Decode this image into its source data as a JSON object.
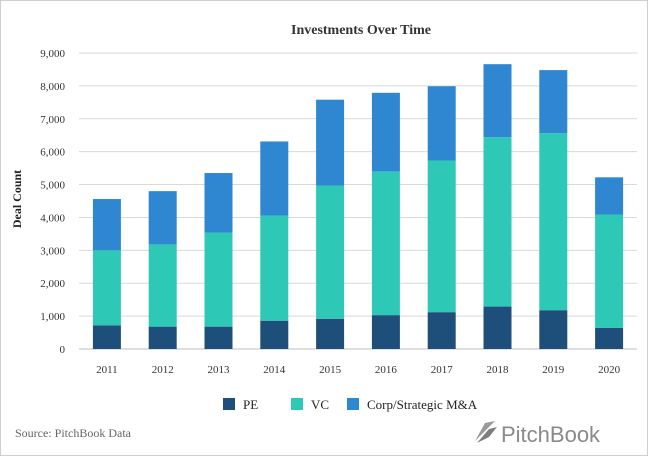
{
  "chart_data": {
    "type": "bar",
    "stacked": true,
    "title": "Investments Over Time",
    "xlabel": "",
    "ylabel": "Deal Count",
    "ylim": [
      0,
      9000
    ],
    "yticks": [
      0,
      1000,
      2000,
      3000,
      4000,
      5000,
      6000,
      7000,
      8000,
      9000
    ],
    "ytick_labels": [
      "0",
      "1,000",
      "2,000",
      "3,000",
      "4,000",
      "5,000",
      "6,000",
      "7,000",
      "8,000",
      "9,000"
    ],
    "grid": true,
    "legend_position": "bottom",
    "categories": [
      "2011",
      "2012",
      "2013",
      "2014",
      "2015",
      "2016",
      "2017",
      "2018",
      "2019",
      "2020"
    ],
    "series": [
      {
        "name": "PE",
        "color": "#1e4f7a",
        "values": [
          720,
          680,
          680,
          860,
          920,
          1030,
          1120,
          1290,
          1180,
          640
        ]
      },
      {
        "name": "VC",
        "color": "#2ec8b6",
        "values": [
          2280,
          2500,
          2860,
          3200,
          4050,
          4370,
          4610,
          5150,
          5380,
          3450
        ]
      },
      {
        "name": "Corp/Strategic M&A",
        "color": "#2f86d1",
        "values": [
          1560,
          1620,
          1810,
          2250,
          2610,
          2390,
          2260,
          2220,
          1920,
          1130
        ]
      }
    ]
  },
  "footer": {
    "source": "Source: PitchBook Data",
    "brand": "PitchBook"
  },
  "colors": {
    "grid": "#d9d9d9",
    "axis": "#bfbfbf",
    "brand": "#8a8a8a"
  }
}
